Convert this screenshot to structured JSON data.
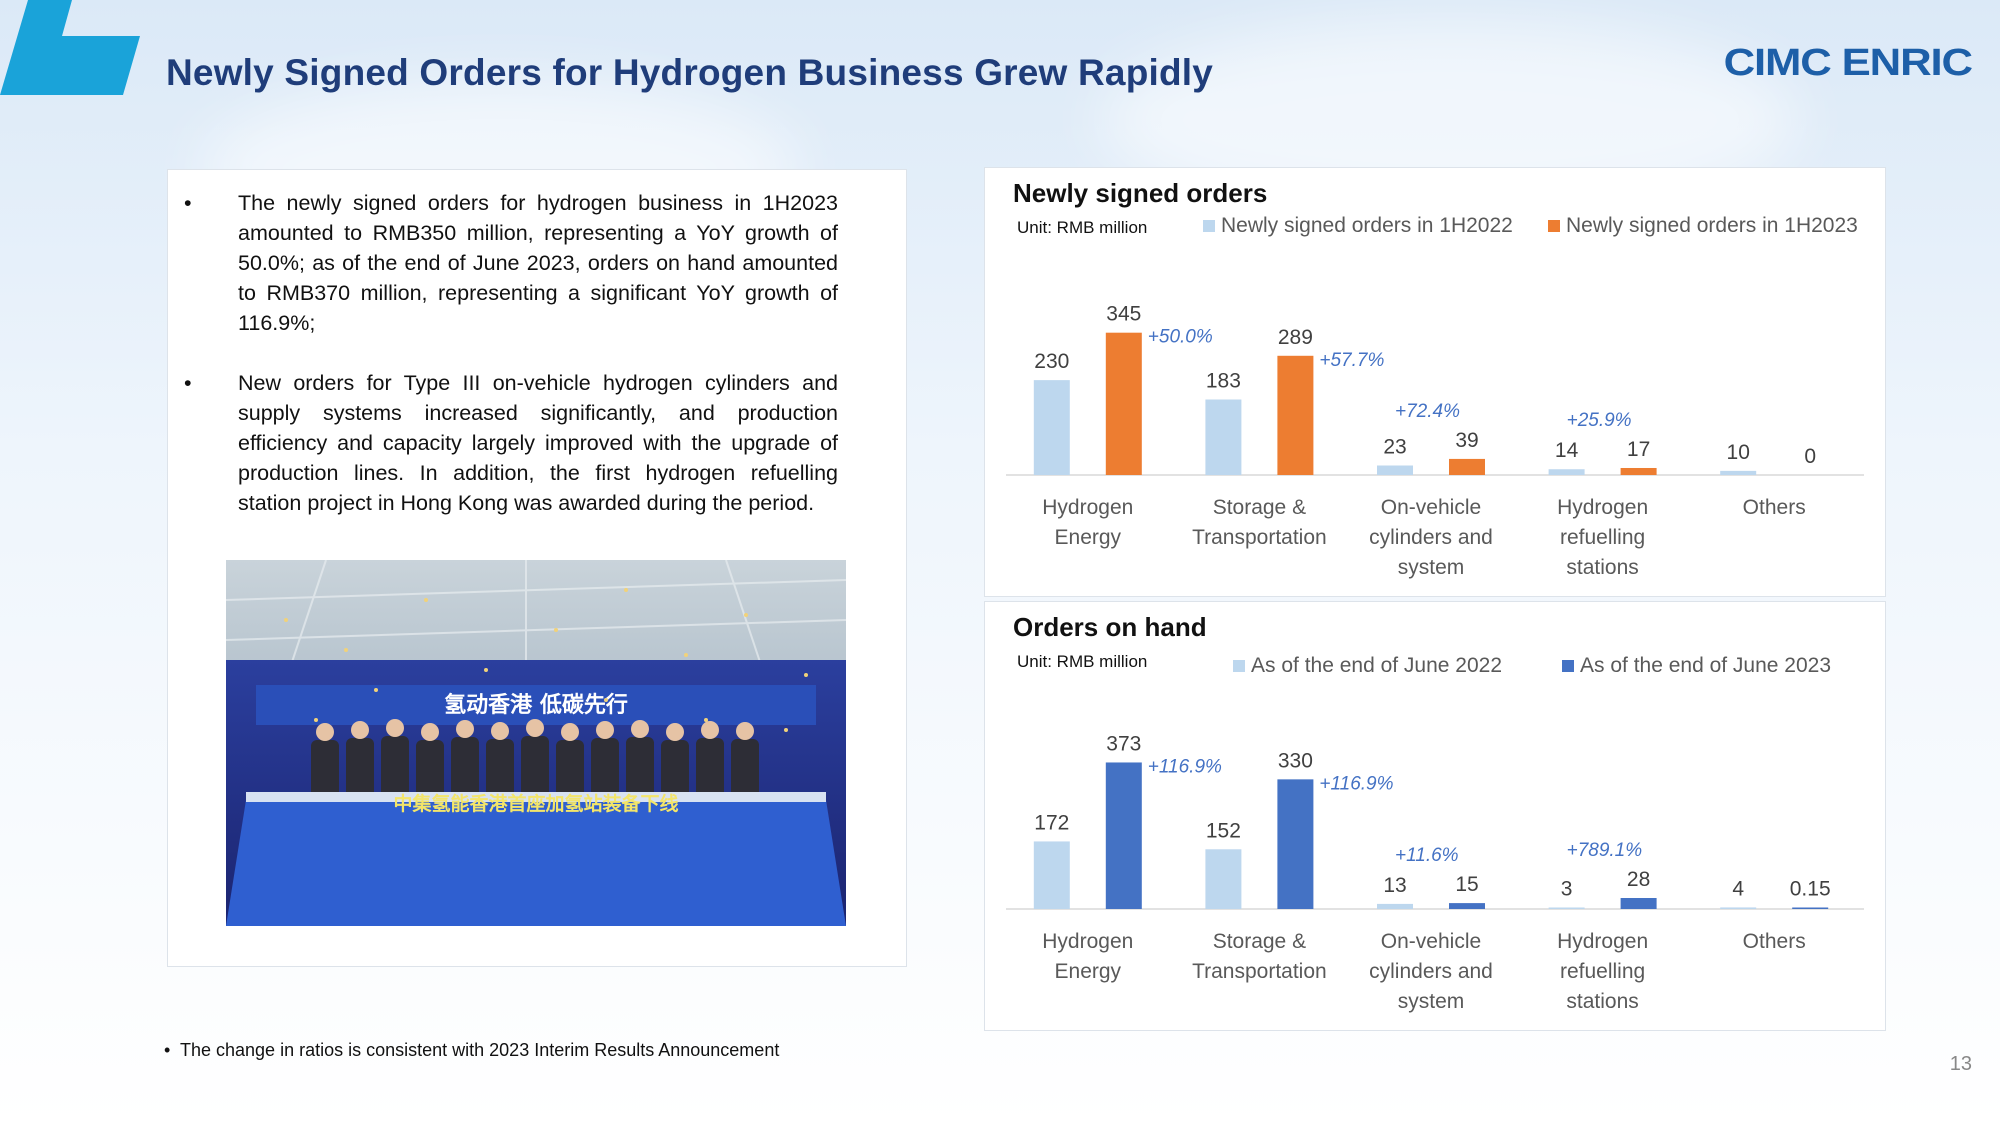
{
  "header": {
    "title": "Newly Signed Orders for Hydrogen Business Grew Rapidly",
    "logo_text": "CIMC ENRIC"
  },
  "bullets": [
    "The newly signed orders for hydrogen business in 1H2023 amounted to RMB350 million, representing a YoY growth of 50.0%; as of the end of June 2023, orders on hand amounted to RMB370 million, representing a significant YoY growth of 116.9%;",
    "New orders for Type III on-vehicle hydrogen cylinders and supply systems increased significantly, and production efficiency and capacity largely improved with the upgrade of production lines. In addition, the first hydrogen refuelling station project in Hong Kong was awarded during the period."
  ],
  "photo": {
    "banner_text": "氢动香港 低碳先行",
    "bottom_text": "中集氢能香港首座加氢站装备下线"
  },
  "footnote": "The change in ratios is consistent with 2023 Interim Results Announcement",
  "page_number": "13",
  "colors": {
    "title": "#1f3d7a",
    "logo": "#1d5fa8",
    "light_bar": "#bdd7ee",
    "orange_bar": "#ed7d31",
    "blue_bar": "#4472c4",
    "growth_text": "#4472c4",
    "corner_accent": "#1aa3d9"
  },
  "chart_data": [
    {
      "type": "bar",
      "title": "Newly signed orders",
      "unit": "Unit: RMB million",
      "categories": [
        [
          "Hydrogen",
          "Energy"
        ],
        [
          "Storage &",
          "Transportation"
        ],
        [
          "On-vehicle",
          "cylinders and",
          "system"
        ],
        [
          "Hydrogen",
          "refuelling",
          "stations"
        ],
        [
          "Others"
        ]
      ],
      "series": [
        {
          "name": "Newly signed orders in 1H2022",
          "values": [
            230,
            183,
            23,
            14,
            10
          ],
          "color": "#bdd7ee"
        },
        {
          "name": "Newly signed orders in 1H2023",
          "values": [
            345,
            289,
            39,
            17,
            0
          ],
          "color": "#ed7d31"
        }
      ],
      "value_labels": [
        [
          "230",
          "183",
          "23",
          "14",
          "10"
        ],
        [
          "345",
          "289",
          "39",
          "17",
          "0"
        ]
      ],
      "growth_labels": [
        "+50.0%",
        "+57.7%",
        "+72.4%",
        "+25.9%",
        ""
      ],
      "ylim": [
        0,
        400
      ],
      "legend": "top",
      "grid": false
    },
    {
      "type": "bar",
      "title": "Orders on hand",
      "unit": "Unit: RMB million",
      "categories": [
        [
          "Hydrogen",
          "Energy"
        ],
        [
          "Storage &",
          "Transportation"
        ],
        [
          "On-vehicle",
          "cylinders and",
          "system"
        ],
        [
          "Hydrogen",
          "refuelling",
          "stations"
        ],
        [
          "Others"
        ]
      ],
      "series": [
        {
          "name": "As of the end of June 2022",
          "values": [
            172,
            152,
            13,
            3,
            4
          ],
          "color": "#bdd7ee"
        },
        {
          "name": "As of the end of June 2023",
          "values": [
            373,
            330,
            15,
            28,
            0.15
          ],
          "color": "#4472c4"
        }
      ],
      "value_labels": [
        [
          "172",
          "152",
          "13",
          "3",
          "4"
        ],
        [
          "373",
          "330",
          "15",
          "28",
          "0.15"
        ]
      ],
      "growth_labels": [
        "+116.9%",
        "+116.9%",
        "+11.6%",
        "+789.1%",
        ""
      ],
      "ylim": [
        0,
        420
      ],
      "legend": "top",
      "grid": false
    }
  ]
}
